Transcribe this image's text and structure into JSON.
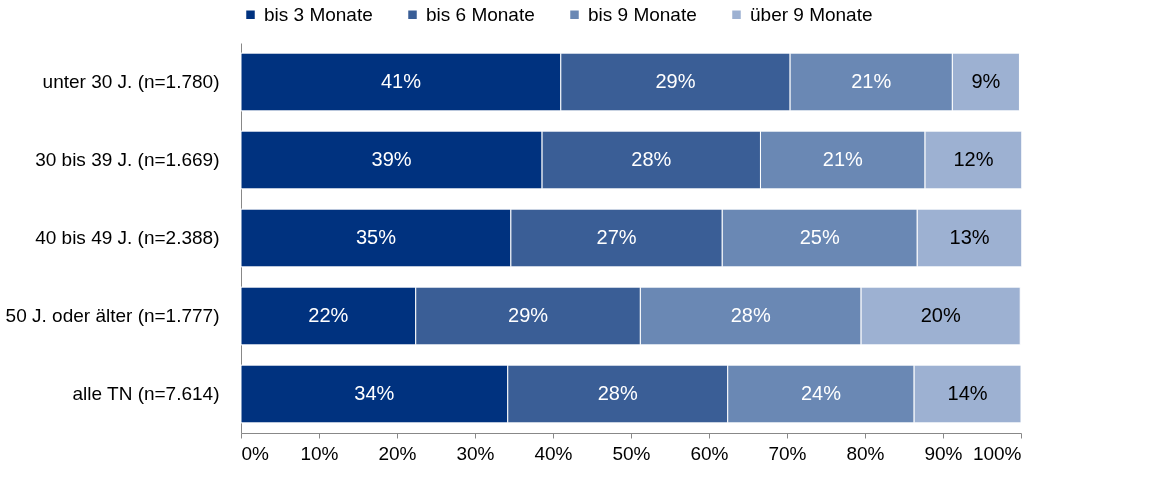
{
  "chart_data": {
    "type": "bar",
    "orientation": "horizontal",
    "stacked": true,
    "categories": [
      "unter 30 J. (n=1.780)",
      "30 bis 39 J. (n=1.669)",
      "40 bis 49 J. (n=2.388)",
      "50 J. oder älter (n=1.777)",
      "alle TN (n=7.614)"
    ],
    "series": [
      {
        "name": "bis 3 Monate",
        "color": "#00327f",
        "values": [
          41,
          38.6,
          34.6,
          22.4,
          34.2
        ],
        "value_labels": [
          "41%",
          "39%",
          "35%",
          "22%",
          "34%"
        ]
      },
      {
        "name": "bis 6 Monate",
        "color": "#3a5e96",
        "values": [
          29.4,
          28,
          27.1,
          28.8,
          28.2
        ],
        "value_labels": [
          "29%",
          "28%",
          "27%",
          "29%",
          "28%"
        ]
      },
      {
        "name": "bis 9 Monate",
        "color": "#6a88b4",
        "values": [
          20.8,
          21.1,
          25,
          28.3,
          23.9
        ],
        "value_labels": [
          "21%",
          "21%",
          "25%",
          "28%",
          "24%"
        ]
      },
      {
        "name": "über 9 Monate",
        "color": "#9db1d2",
        "values": [
          8.6,
          12.4,
          13.4,
          20.4,
          13.7
        ],
        "value_labels": [
          "9%",
          "12%",
          "13%",
          "20%",
          "14%"
        ]
      }
    ],
    "xlim": [
      0,
      100
    ],
    "xticks": [
      {
        "value": 0,
        "label": "0%"
      },
      {
        "value": 10,
        "label": "10%"
      },
      {
        "value": 20,
        "label": "20%"
      },
      {
        "value": 30,
        "label": "30%"
      },
      {
        "value": 40,
        "label": "40%"
      },
      {
        "value": 50,
        "label": "50%"
      },
      {
        "value": 60,
        "label": "60%"
      },
      {
        "value": 70,
        "label": "70%"
      },
      {
        "value": 80,
        "label": "80%"
      },
      {
        "value": 90,
        "label": "90%"
      },
      {
        "value": 100,
        "label": "100%"
      }
    ],
    "legend": "top",
    "grid": false
  }
}
